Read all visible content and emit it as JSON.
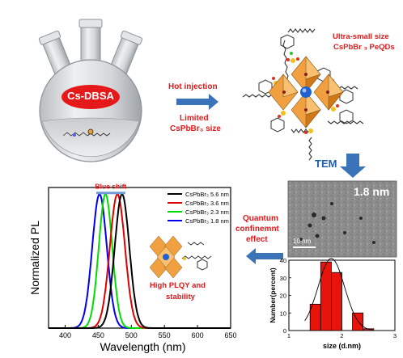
{
  "flask_label": "Cs-DBSA",
  "step1": {
    "title": "Hot injection",
    "subtitle_line1": "Limited",
    "subtitle_line2": "CsPbBr₃ size"
  },
  "qd_label": {
    "line1": "Ultra-small size",
    "line2": "CsPbBr ₃ PeQDs"
  },
  "tem": {
    "arrow_label": "TEM",
    "size_label": "1.8 nm",
    "scale_bar": "10 nm"
  },
  "quantum": {
    "line1": "Quantum",
    "line2": "confinemnt",
    "line3": "effect"
  },
  "plqy": {
    "line1": "High PLQY and",
    "line2": "stability"
  },
  "chart_data": [
    {
      "type": "line",
      "annotation": "Blue shift",
      "xlabel": "Wavelength (nm)",
      "ylabel": "Normalized PL",
      "xlim": [
        375,
        650
      ],
      "ylim": [
        0,
        1.05
      ],
      "xticks": [
        "400",
        "450",
        "500",
        "550",
        "600",
        "650"
      ],
      "grid": false,
      "legend_position": "top-right",
      "series": [
        {
          "name": "CsPbBr₃  5.6 nm",
          "color": "#000000",
          "peak": 486,
          "fwhm": 26
        },
        {
          "name": "CsPbBr₃  3.6 nm",
          "color": "#e00000",
          "peak": 479,
          "fwhm": 27
        },
        {
          "name": "CsPbBr₃  2.3 nm",
          "color": "#00dd00",
          "peak": 461,
          "fwhm": 24
        },
        {
          "name": "CsPbBr₃  1.8 nm",
          "color": "#0000ee",
          "peak": 452,
          "fwhm": 26
        }
      ]
    },
    {
      "type": "bar",
      "xlabel": "size (d.nm)",
      "ylabel": "Number(percent)",
      "xlim": [
        1,
        3
      ],
      "ylim": [
        0,
        40
      ],
      "xticks": [
        "1",
        "2",
        "3"
      ],
      "yticks": [
        "0",
        "10",
        "20",
        "30",
        "40"
      ],
      "bars": [
        {
          "x": 1.5,
          "value": 15
        },
        {
          "x": 1.7,
          "value": 39
        },
        {
          "x": 1.9,
          "value": 33
        },
        {
          "x": 2.3,
          "value": 10
        },
        {
          "x": 2.5,
          "value": 1
        }
      ],
      "fit_curve": true,
      "colors": {
        "bar": "#e8140c",
        "edge": "#000000"
      }
    }
  ]
}
